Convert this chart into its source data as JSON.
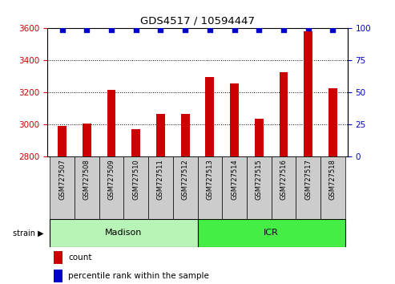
{
  "title": "GDS4517 / 10594447",
  "samples": [
    "GSM727507",
    "GSM727508",
    "GSM727509",
    "GSM727510",
    "GSM727511",
    "GSM727512",
    "GSM727513",
    "GSM727514",
    "GSM727515",
    "GSM727516",
    "GSM727517",
    "GSM727518"
  ],
  "counts": [
    2990,
    3005,
    3215,
    2968,
    3065,
    3065,
    3295,
    3255,
    3035,
    3325,
    3580,
    3225
  ],
  "percentiles": [
    99,
    99,
    99,
    99,
    99,
    99,
    99,
    99,
    99,
    99,
    100,
    99
  ],
  "strains": [
    "Madison",
    "Madison",
    "Madison",
    "Madison",
    "Madison",
    "Madison",
    "ICR",
    "ICR",
    "ICR",
    "ICR",
    "ICR",
    "ICR"
  ],
  "madison_color": "#b8f4b8",
  "icr_color": "#44ee44",
  "bar_color": "#CC0000",
  "dot_color": "#0000CC",
  "ylim_left": [
    2800,
    3600
  ],
  "ylim_right": [
    0,
    100
  ],
  "yticks_left": [
    2800,
    3000,
    3200,
    3400,
    3600
  ],
  "yticks_right": [
    0,
    25,
    50,
    75,
    100
  ],
  "left_tick_color": "#CC0000",
  "right_tick_color": "#0000CC",
  "xtick_bg_color": "#cccccc",
  "background_color": "#ffffff",
  "legend_count_color": "#CC0000",
  "legend_pct_color": "#0000CC",
  "bar_width": 0.35
}
